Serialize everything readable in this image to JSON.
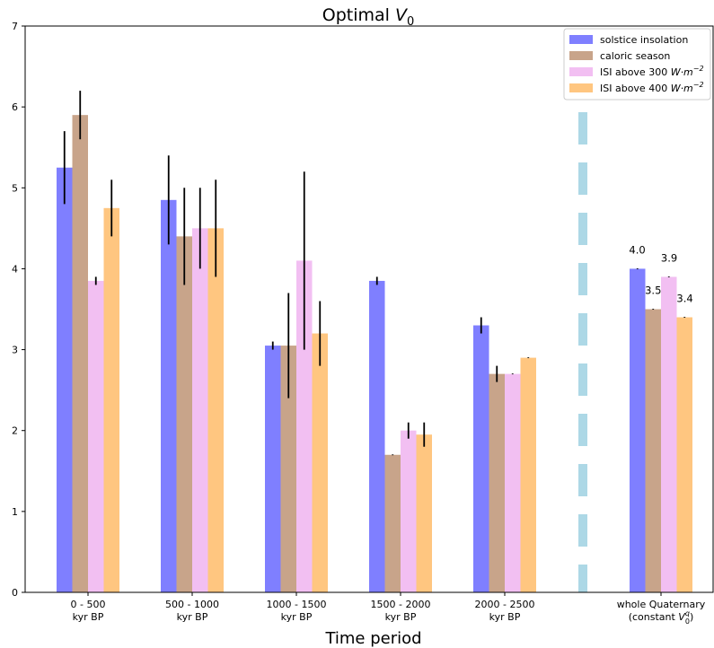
{
  "chart_data": {
    "type": "bar",
    "title": "Optimal V0",
    "title_main": "Optimal ",
    "title_var": "V",
    "title_sub": "0",
    "xlabel": "Time period",
    "ylabel": "",
    "ylim": [
      0,
      7
    ],
    "yticks": [
      "0",
      "1",
      "2",
      "3",
      "4",
      "5",
      "6",
      "7"
    ],
    "grid": false,
    "legend_position": "top-right",
    "categories": [
      {
        "line1": "0 - 500",
        "line2": "kyr BP"
      },
      {
        "line1": "500 - 1000",
        "line2": "kyr BP"
      },
      {
        "line1": "1000 - 1500",
        "line2": "kyr BP"
      },
      {
        "line1": "1500 - 2000",
        "line2": "kyr BP"
      },
      {
        "line1": "2000 - 2500",
        "line2": "kyr BP"
      },
      {
        "line1": "whole Quaternary",
        "line2": "(constant V0q)",
        "line2_pre": "(constant ",
        "line2_var": "V",
        "line2_sub": "0",
        "line2_sup": "q",
        "line2_post": ")"
      }
    ],
    "series": [
      {
        "name": "solstice insolation",
        "legend_pre": "solstice insolation",
        "color": "#7f7fff",
        "values": [
          5.25,
          4.85,
          3.05,
          3.85,
          3.3,
          4.0
        ],
        "errors": [
          0.45,
          0.55,
          0.05,
          0.05,
          0.1,
          0.005
        ]
      },
      {
        "name": "caloric season",
        "legend_pre": "caloric season",
        "color": "#c8a48a",
        "values": [
          5.9,
          4.4,
          3.05,
          1.7,
          2.7,
          3.5
        ],
        "errors": [
          0.3,
          0.6,
          0.65,
          0.005,
          0.1,
          0.005
        ]
      },
      {
        "name": "ISI above 300 W·m^-2",
        "legend_pre": "ISI above 300 ",
        "legend_unit": "W·m",
        "legend_exp": "−2",
        "color": "#f2bff2",
        "values": [
          3.85,
          4.5,
          4.1,
          2.0,
          2.7,
          3.9
        ],
        "errors": [
          0.05,
          0.5,
          1.1,
          0.1,
          0.005,
          0.005
        ]
      },
      {
        "name": "ISI above 400 W·m^-2",
        "legend_pre": "ISI above 400 ",
        "legend_unit": "W·m",
        "legend_exp": "−2",
        "color": "#ffc680",
        "values": [
          4.75,
          4.5,
          3.2,
          1.95,
          2.9,
          3.4
        ],
        "errors": [
          0.35,
          0.6,
          0.4,
          0.15,
          0.005,
          0.005
        ]
      }
    ],
    "annotations": [
      {
        "text": "4.0",
        "category": 5,
        "series": 0
      },
      {
        "text": "3.5",
        "category": 5,
        "series": 1
      },
      {
        "text": "3.9",
        "category": 5,
        "series": 2
      },
      {
        "text": "3.4",
        "category": 5,
        "series": 3
      }
    ],
    "separator": {
      "style": "dashed",
      "color": "#add8e6",
      "between_categories": [
        4,
        5
      ]
    }
  }
}
